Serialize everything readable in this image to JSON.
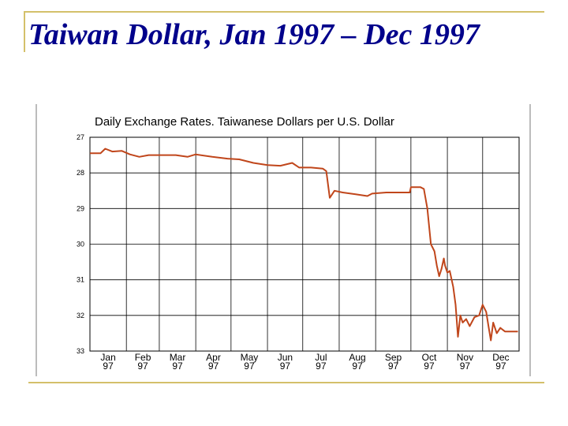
{
  "slide": {
    "title": "Taiwan Dollar, Jan 1997 – Dec 1997"
  },
  "chart_data": {
    "type": "line",
    "title": "Daily Exchange Rates. Taiwanese Dollars per U.S. Dollar",
    "xlabel": "",
    "ylabel": "",
    "y_inverted": true,
    "ylim": [
      27,
      33
    ],
    "yticks": [
      "27",
      "28",
      "29",
      "30",
      "31",
      "32",
      "33"
    ],
    "xticks": [
      {
        "month": "Jan",
        "year": "97"
      },
      {
        "month": "Feb",
        "year": "97"
      },
      {
        "month": "Mar",
        "year": "97"
      },
      {
        "month": "Apr",
        "year": "97"
      },
      {
        "month": "May",
        "year": "97"
      },
      {
        "month": "Jun",
        "year": "97"
      },
      {
        "month": "Jul",
        "year": "97"
      },
      {
        "month": "Aug",
        "year": "97"
      },
      {
        "month": "Sep",
        "year": "97"
      },
      {
        "month": "Oct",
        "year": "97"
      },
      {
        "month": "Nov",
        "year": "97"
      },
      {
        "month": "Dec",
        "year": "97"
      }
    ],
    "grid": true,
    "line_color": "#c0461b",
    "series": [
      {
        "values": [
          [
            "1997-01-01",
            27.45
          ],
          [
            "1997-01-10",
            27.45
          ],
          [
            "1997-01-14",
            27.32
          ],
          [
            "1997-01-20",
            27.4
          ],
          [
            "1997-01-28",
            27.38
          ],
          [
            "1997-02-04",
            27.48
          ],
          [
            "1997-02-12",
            27.55
          ],
          [
            "1997-02-20",
            27.5
          ],
          [
            "1997-03-01",
            27.5
          ],
          [
            "1997-03-15",
            27.5
          ],
          [
            "1997-03-25",
            27.55
          ],
          [
            "1997-04-01",
            27.48
          ],
          [
            "1997-04-15",
            27.55
          ],
          [
            "1997-04-28",
            27.6
          ],
          [
            "1997-05-08",
            27.62
          ],
          [
            "1997-05-20",
            27.72
          ],
          [
            "1997-06-01",
            27.78
          ],
          [
            "1997-06-12",
            27.8
          ],
          [
            "1997-06-22",
            27.72
          ],
          [
            "1997-06-28",
            27.85
          ],
          [
            "1997-07-08",
            27.85
          ],
          [
            "1997-07-18",
            27.88
          ],
          [
            "1997-07-21",
            27.95
          ],
          [
            "1997-07-24",
            28.7
          ],
          [
            "1997-07-28",
            28.5
          ],
          [
            "1997-08-04",
            28.55
          ],
          [
            "1997-08-15",
            28.6
          ],
          [
            "1997-08-25",
            28.65
          ],
          [
            "1997-08-29",
            28.58
          ],
          [
            "1997-09-10",
            28.55
          ],
          [
            "1997-09-20",
            28.55
          ],
          [
            "1997-09-30",
            28.55
          ],
          [
            "1997-10-01",
            28.4
          ],
          [
            "1997-10-09",
            28.4
          ],
          [
            "1997-10-12",
            28.45
          ],
          [
            "1997-10-15",
            29.0
          ],
          [
            "1997-10-18",
            30.0
          ],
          [
            "1997-10-21",
            30.2
          ],
          [
            "1997-10-23",
            30.6
          ],
          [
            "1997-10-25",
            30.9
          ],
          [
            "1997-10-27",
            30.7
          ],
          [
            "1997-10-29",
            30.4
          ],
          [
            "1997-10-30",
            30.6
          ],
          [
            "1997-11-01",
            30.8
          ],
          [
            "1997-11-03",
            30.75
          ],
          [
            "1997-11-06",
            31.2
          ],
          [
            "1997-11-08",
            31.7
          ],
          [
            "1997-11-10",
            32.6
          ],
          [
            "1997-11-12",
            32.0
          ],
          [
            "1997-11-14",
            32.2
          ],
          [
            "1997-11-17",
            32.1
          ],
          [
            "1997-11-20",
            32.3
          ],
          [
            "1997-11-24",
            32.05
          ],
          [
            "1997-11-28",
            32.0
          ],
          [
            "1997-12-01",
            31.7
          ],
          [
            "1997-12-04",
            31.9
          ],
          [
            "1997-12-06",
            32.3
          ],
          [
            "1997-12-08",
            32.7
          ],
          [
            "1997-12-10",
            32.2
          ],
          [
            "1997-12-13",
            32.5
          ],
          [
            "1997-12-16",
            32.35
          ],
          [
            "1997-12-20",
            32.45
          ],
          [
            "1997-12-24",
            32.45
          ],
          [
            "1997-12-31",
            32.45
          ]
        ]
      }
    ]
  }
}
